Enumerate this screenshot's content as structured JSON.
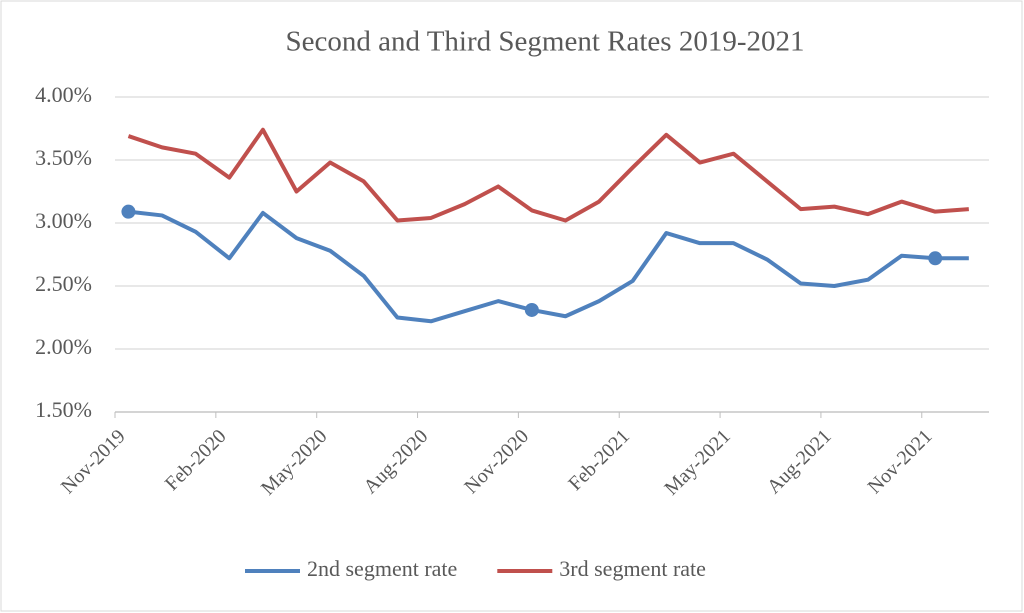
{
  "chart_data": {
    "type": "line",
    "title": "Second and Third Segment Rates 2019-2021",
    "categories": [
      "Nov-2019",
      null,
      null,
      "Feb-2020",
      null,
      null,
      "May-2020",
      null,
      null,
      "Aug-2020",
      null,
      null,
      "Nov-2020",
      null,
      null,
      "Feb-2021",
      null,
      null,
      "May-2021",
      null,
      null,
      "Aug-2021",
      null,
      null,
      "Nov-2021",
      null
    ],
    "series": [
      {
        "name": "2nd segment rate",
        "color": "#4f81bd",
        "marker_indices": [
          0,
          12,
          24
        ],
        "values": [
          3.09,
          3.06,
          2.93,
          2.72,
          3.08,
          2.88,
          2.78,
          2.58,
          2.25,
          2.22,
          2.3,
          2.38,
          2.31,
          2.26,
          2.38,
          2.54,
          2.92,
          2.84,
          2.84,
          2.71,
          2.52,
          2.5,
          2.55,
          2.74,
          2.72,
          2.72
        ]
      },
      {
        "name": "3rd segment rate",
        "color": "#c0504d",
        "values": [
          3.69,
          3.6,
          3.55,
          3.36,
          3.74,
          3.25,
          3.48,
          3.33,
          3.02,
          3.04,
          3.15,
          3.29,
          3.1,
          3.02,
          3.17,
          3.44,
          3.7,
          3.48,
          3.55,
          3.33,
          3.11,
          3.13,
          3.07,
          3.17,
          3.09,
          3.11
        ]
      }
    ],
    "ylim": [
      1.5,
      4.0
    ],
    "yticks": [
      {
        "value": 1.5,
        "label": "1.50%"
      },
      {
        "value": 2.0,
        "label": "2.00%"
      },
      {
        "value": 2.5,
        "label": "2.50%"
      },
      {
        "value": 3.0,
        "label": "3.00%"
      },
      {
        "value": 3.5,
        "label": "3.50%"
      },
      {
        "value": 4.0,
        "label": "4.00%"
      }
    ],
    "grid": true,
    "legend": "bottom"
  }
}
